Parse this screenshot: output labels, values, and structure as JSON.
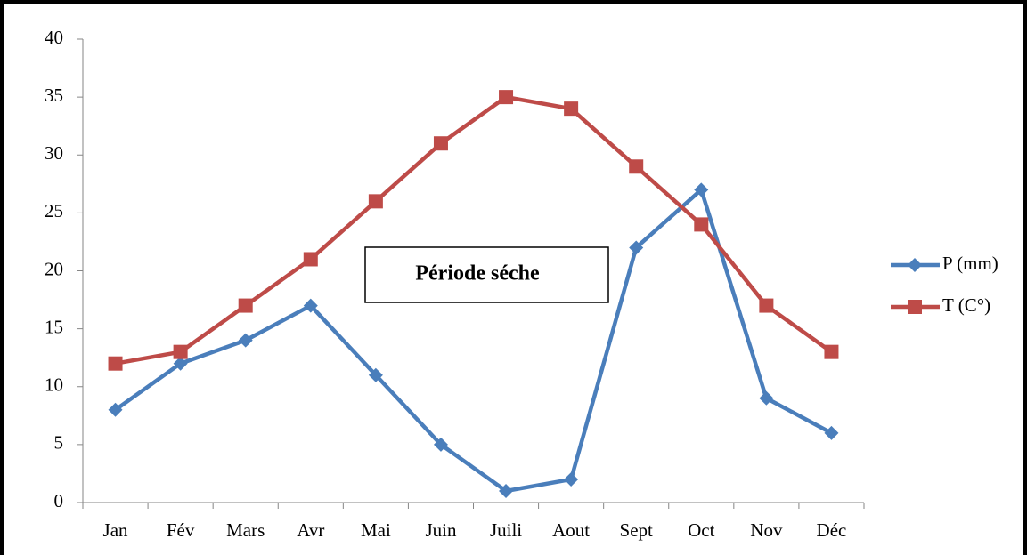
{
  "chart_data": {
    "type": "line",
    "categories": [
      "Jan",
      "Fév",
      "Mars",
      "Avr",
      "Mai",
      "Juin",
      "Juili",
      "Aout",
      "Sept",
      "Oct",
      "Nov",
      "Déc"
    ],
    "series": [
      {
        "name": "P (mm)",
        "color": "#4a7ebb",
        "marker": "diamond",
        "values": [
          8,
          12,
          14,
          17,
          11,
          5,
          1,
          2,
          22,
          27,
          9,
          6
        ]
      },
      {
        "name": "T (C°)",
        "color": "#be4b48",
        "marker": "square",
        "values": [
          12,
          13,
          17,
          21,
          26,
          31,
          35,
          34,
          29,
          24,
          17,
          13
        ]
      }
    ],
    "ylim": [
      0,
      40
    ],
    "yticks": [
      0,
      5,
      10,
      15,
      20,
      25,
      30,
      35,
      40
    ],
    "annotation": "Période séche",
    "legend": "right",
    "grid": false
  }
}
